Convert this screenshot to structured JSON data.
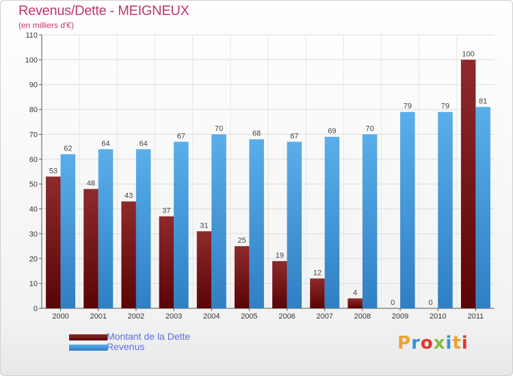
{
  "title": "Revenus/Dette - MEIGNEUX",
  "subtitle": "(en milliers d'€)",
  "brand": "Proxiti",
  "brand_colors": [
    "#f0a030",
    "#3a8fd8",
    "#e0352c",
    "#7cbf3a",
    "#3a8fd8",
    "#f0a030",
    "#e0352c"
  ],
  "colors": {
    "dette": "#7a1416",
    "revenus": "#4a9fe0",
    "title": "#c0366e",
    "legend_text": "#5a6fe0"
  },
  "chart_data": {
    "type": "bar",
    "categories": [
      "2000",
      "2001",
      "2002",
      "2003",
      "2004",
      "2005",
      "2006",
      "2007",
      "2008",
      "2009",
      "2010",
      "2011"
    ],
    "series": [
      {
        "name": "Montant de la Dette",
        "values": [
          53,
          48,
          43,
          37,
          31,
          25,
          19,
          12,
          4,
          0,
          0,
          100
        ]
      },
      {
        "name": "Revenus",
        "values": [
          62,
          64,
          64,
          67,
          70,
          68,
          67,
          69,
          70,
          79,
          79,
          81
        ]
      }
    ],
    "ylim": [
      0,
      110
    ],
    "yticks": [
      0,
      10,
      20,
      30,
      40,
      50,
      60,
      70,
      80,
      90,
      100,
      110
    ],
    "grid": true,
    "legend_position": "bottom-left",
    "title": "Revenus/Dette - MEIGNEUX",
    "xlabel": "",
    "ylabel": "(en milliers d'€)"
  }
}
